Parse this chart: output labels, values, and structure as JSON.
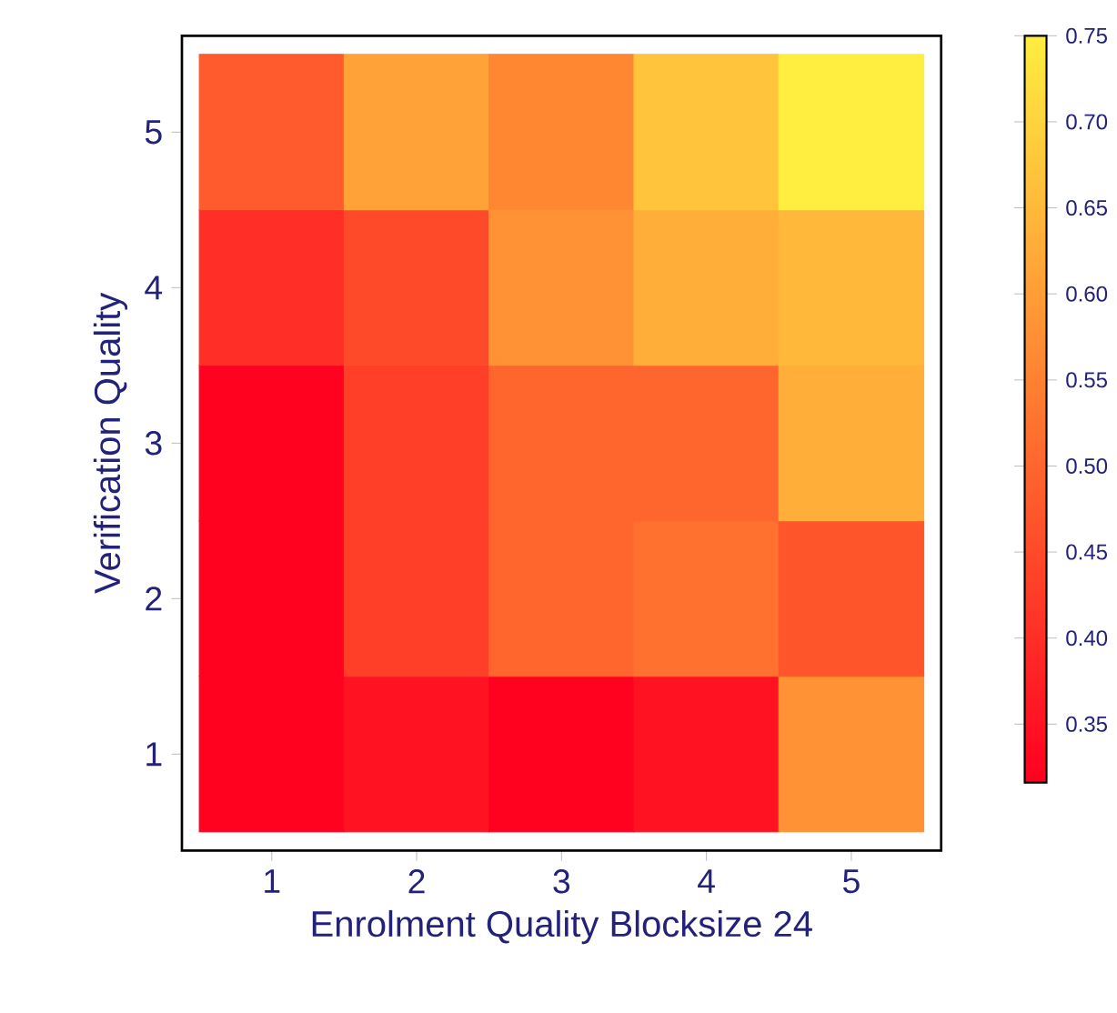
{
  "chart_data": {
    "type": "heatmap",
    "xlabel": "Enrolment Quality  Blocksize 24",
    "ylabel": "Verification Quality",
    "categories": [
      "1",
      "2",
      "3",
      "4",
      "5"
    ],
    "y_categories": [
      "5",
      "4",
      "3",
      "2",
      "1"
    ],
    "cells": [
      [
        0.48,
        0.61,
        0.56,
        0.67,
        0.75
      ],
      [
        0.4,
        0.45,
        0.58,
        0.63,
        0.65
      ],
      [
        0.32,
        0.43,
        0.5,
        0.5,
        0.63
      ],
      [
        0.32,
        0.43,
        0.5,
        0.52,
        0.47
      ],
      [
        0.32,
        0.35,
        0.32,
        0.35,
        0.58
      ]
    ],
    "clim": [
      0.316,
      0.75
    ],
    "cticks": [
      0.35,
      {
        "value": 0.4,
        "label": "0.40"
      },
      0.45,
      {
        "value": 0.5,
        "label": "0.50"
      },
      0.55,
      {
        "value": 0.6,
        "label": "0.60"
      },
      0.65,
      {
        "value": 0.7,
        "label": "0.70"
      },
      0.75
    ]
  }
}
